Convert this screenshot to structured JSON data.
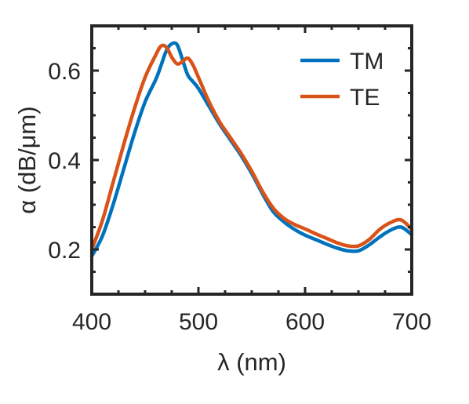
{
  "chart_data": {
    "type": "line",
    "x": [
      400,
      410,
      420,
      430,
      440,
      450,
      460,
      465,
      470,
      475,
      480,
      485,
      490,
      495,
      500,
      510,
      520,
      530,
      540,
      550,
      560,
      570,
      580,
      590,
      600,
      610,
      620,
      630,
      640,
      650,
      660,
      670,
      680,
      690,
      700
    ],
    "series": [
      {
        "name": "TM",
        "color": "#0072BD",
        "values": [
          0.185,
          0.23,
          0.3,
          0.38,
          0.46,
          0.53,
          0.58,
          0.612,
          0.645,
          0.66,
          0.658,
          0.625,
          0.59,
          0.575,
          0.56,
          0.52,
          0.48,
          0.445,
          0.41,
          0.37,
          0.325,
          0.285,
          0.262,
          0.245,
          0.232,
          0.222,
          0.212,
          0.203,
          0.197,
          0.197,
          0.21,
          0.228,
          0.243,
          0.25,
          0.233
        ]
      },
      {
        "name": "TE",
        "color": "#D95319",
        "values": [
          0.2,
          0.265,
          0.35,
          0.435,
          0.515,
          0.585,
          0.635,
          0.655,
          0.652,
          0.63,
          0.615,
          0.62,
          0.628,
          0.612,
          0.585,
          0.53,
          0.485,
          0.45,
          0.415,
          0.375,
          0.33,
          0.293,
          0.27,
          0.256,
          0.246,
          0.235,
          0.225,
          0.215,
          0.208,
          0.208,
          0.222,
          0.245,
          0.26,
          0.266,
          0.245
        ]
      }
    ],
    "xlabel": "λ (nm)",
    "ylabel": "α (dB/μm)",
    "xlim": [
      400,
      700
    ],
    "ylim": [
      0.1,
      0.7
    ],
    "xticks": [
      "400",
      "500",
      "600",
      "700"
    ],
    "yticks": [
      "0.2",
      "0.4",
      "0.6"
    ],
    "xtick_values": [
      400,
      500,
      600,
      700
    ],
    "ytick_values": [
      0.2,
      0.4,
      0.6
    ],
    "grid": false,
    "legend_position": "top-right",
    "box": true
  }
}
